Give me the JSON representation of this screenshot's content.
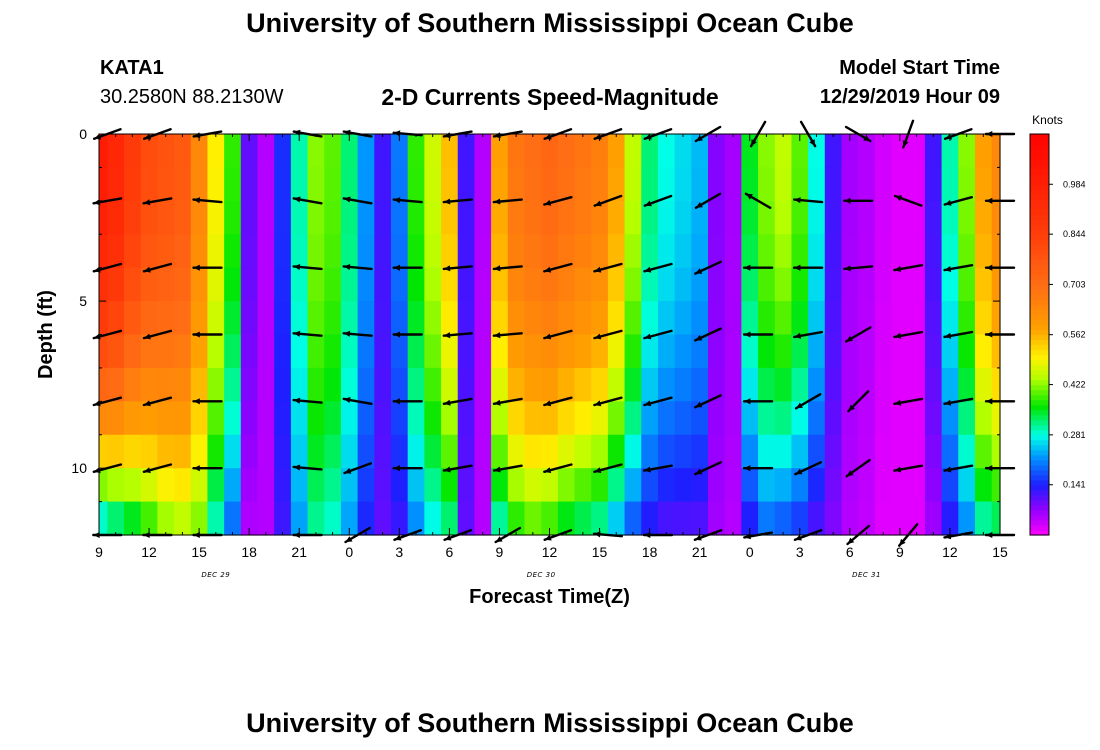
{
  "header": {
    "title": "University of Southern Mississippi Ocean Cube",
    "station_id": "KATA1",
    "coords": "30.2580N 88.2130W",
    "plot_title": "2-D Currents Speed-Magnitude",
    "model_start_label": "Model Start Time",
    "model_start_value": "12/29/2019 Hour 09"
  },
  "footer": {
    "title": "University of Southern Mississippi Ocean Cube"
  },
  "chart_data": {
    "type": "heatmap",
    "title": "2-D Currents Speed-Magnitude",
    "xlabel": "Forecast Time(Z)",
    "ylabel": "Depth (ft)",
    "x_tick_labels": [
      "9",
      "12",
      "15",
      "18",
      "21",
      "0",
      "3",
      "6",
      "9",
      "12",
      "15",
      "18",
      "21",
      "0",
      "3",
      "6",
      "9",
      "12",
      "15"
    ],
    "x_range_hours": [
      0,
      54
    ],
    "date_labels": [
      {
        "text": "DEC 29",
        "hour": 7
      },
      {
        "text": "DEC 30",
        "hour": 26.5
      },
      {
        "text": "DEC 31",
        "hour": 46
      }
    ],
    "y_ticks": [
      0,
      5,
      10
    ],
    "y_range": [
      0,
      12
    ],
    "y_inverted": true,
    "colorbar": {
      "unit": "Knots",
      "labels": [
        "0.984",
        "0.844",
        "0.703",
        "0.562",
        "0.422",
        "0.281",
        "0.141"
      ],
      "label_values": [
        0.984,
        0.844,
        0.703,
        0.562,
        0.422,
        0.281,
        0.141
      ],
      "range": [
        0,
        1.125
      ]
    },
    "depths": [
      0,
      2,
      4,
      6,
      8,
      10,
      12
    ],
    "speed_profile": {
      "hours": [
        0,
        1,
        2,
        3,
        4,
        5,
        6,
        7,
        8,
        9,
        10,
        11,
        12,
        13,
        14,
        15,
        16,
        17,
        18,
        19,
        20,
        21,
        22,
        23,
        24,
        25,
        26,
        27,
        28,
        29,
        30,
        31,
        32,
        33,
        34,
        35,
        36,
        37,
        38,
        39,
        40,
        41,
        42,
        43,
        44,
        45,
        46,
        47,
        48,
        49,
        50,
        51,
        52,
        53,
        54
      ],
      "surface": [
        1.0,
        0.95,
        0.86,
        0.8,
        0.78,
        0.76,
        0.64,
        0.5,
        0.38,
        0.1,
        0.05,
        0.15,
        0.3,
        0.42,
        0.4,
        0.32,
        0.22,
        0.12,
        0.2,
        0.38,
        0.46,
        0.55,
        0.12,
        0.05,
        0.58,
        0.68,
        0.7,
        0.72,
        0.7,
        0.68,
        0.66,
        0.58,
        0.45,
        0.32,
        0.28,
        0.26,
        0.24,
        0.08,
        0.06,
        0.35,
        0.42,
        0.45,
        0.4,
        0.28,
        0.12,
        0.06,
        0.05,
        0.03,
        0.02,
        0.02,
        0.12,
        0.3,
        0.42,
        0.58,
        0.64
      ],
      "bottom": [
        0.22,
        0.26,
        0.3,
        0.35,
        0.4,
        0.42,
        0.4,
        0.28,
        0.18,
        0.05,
        0.05,
        0.12,
        0.22,
        0.3,
        0.28,
        0.22,
        0.14,
        0.1,
        0.12,
        0.2,
        0.26,
        0.3,
        0.1,
        0.05,
        0.28,
        0.35,
        0.38,
        0.36,
        0.32,
        0.3,
        0.28,
        0.22,
        0.16,
        0.12,
        0.1,
        0.1,
        0.1,
        0.06,
        0.05,
        0.12,
        0.18,
        0.16,
        0.14,
        0.1,
        0.08,
        0.05,
        0.04,
        0.02,
        0.02,
        0.02,
        0.06,
        0.12,
        0.2,
        0.28,
        0.3
      ]
    },
    "vectors": {
      "hours": [
        0.5,
        3.5,
        6.5,
        12.5,
        15.5,
        18.5,
        21.5,
        24.5,
        27.5,
        30.5,
        33.5,
        36.5,
        39.5,
        42.5,
        45.5,
        48.5,
        51.5,
        54
      ],
      "directions_deg": [
        [
          200,
          200,
          190,
          170,
          170,
          175,
          190,
          190,
          200,
          200,
          200,
          210,
          240,
          300,
          330,
          250,
          200,
          180
        ],
        [
          190,
          190,
          175,
          170,
          170,
          175,
          185,
          185,
          195,
          200,
          200,
          210,
          150,
          175,
          180,
          160,
          195,
          180
        ],
        [
          195,
          195,
          180,
          175,
          175,
          180,
          185,
          185,
          195,
          195,
          195,
          205,
          180,
          180,
          185,
          190,
          190,
          180
        ],
        [
          195,
          195,
          180,
          175,
          175,
          180,
          185,
          185,
          195,
          195,
          195,
          205,
          180,
          190,
          210,
          190,
          190,
          180
        ],
        [
          195,
          195,
          180,
          175,
          170,
          180,
          190,
          190,
          195,
          195,
          195,
          205,
          180,
          210,
          225,
          190,
          190,
          180
        ],
        [
          195,
          195,
          180,
          175,
          200,
          180,
          190,
          190,
          195,
          195,
          190,
          205,
          180,
          205,
          215,
          190,
          190,
          180
        ],
        [
          180,
          180,
          180,
          180,
          210,
          200,
          200,
          210,
          200,
          175,
          180,
          200,
          190,
          200,
          220,
          230,
          190,
          180
        ]
      ]
    }
  }
}
